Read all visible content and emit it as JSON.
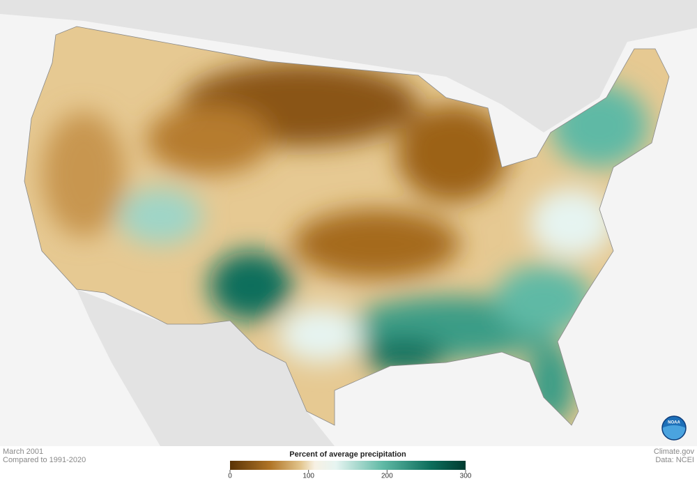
{
  "map": {
    "date": "March 2001",
    "baseline": "Compared to 1991-2020"
  },
  "legend": {
    "title": "Percent of average precipitation",
    "ticks": [
      0,
      100,
      200,
      300
    ]
  },
  "credits": {
    "source": "Climate.gov",
    "data": "Data: NCEI"
  },
  "logo": {
    "label": "NOAA"
  }
}
